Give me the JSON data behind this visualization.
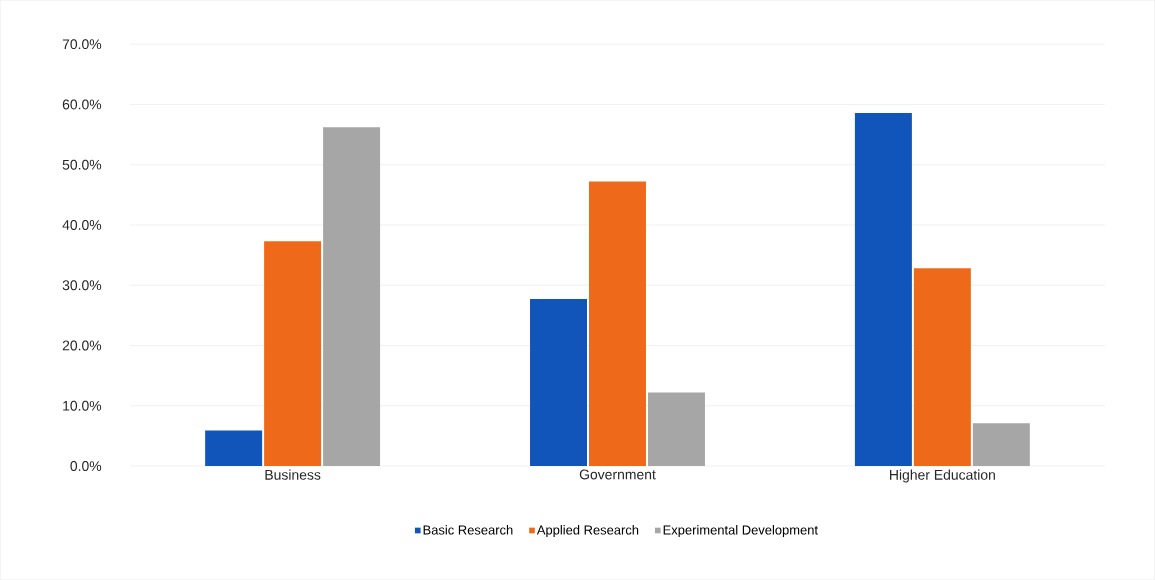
{
  "chart_data": {
    "type": "bar",
    "categories": [
      "Business",
      "Government",
      "Higher Education"
    ],
    "series": [
      {
        "name": "Basic Research",
        "color": "#1155bb",
        "values": [
          5.9,
          27.7,
          58.6
        ]
      },
      {
        "name": "Applied Research",
        "color": "#ee6a1a",
        "values": [
          37.3,
          47.2,
          32.8
        ]
      },
      {
        "name": "Experimental Development",
        "color": "#a6a6a6",
        "values": [
          56.2,
          12.2,
          7.1
        ]
      }
    ],
    "ylim": [
      0,
      70
    ],
    "yticks": [
      {
        "value": 0,
        "label": "0.0%"
      },
      {
        "value": 10,
        "label": "10.0%"
      },
      {
        "value": 20,
        "label": "20.0%"
      },
      {
        "value": 30,
        "label": "30.0%"
      },
      {
        "value": 40,
        "label": "40.0%"
      },
      {
        "value": 50,
        "label": "50.0%"
      },
      {
        "value": 60,
        "label": "60.0%"
      },
      {
        "value": 70,
        "label": "70.0%"
      }
    ],
    "grid": "y",
    "legend": "bottom"
  }
}
